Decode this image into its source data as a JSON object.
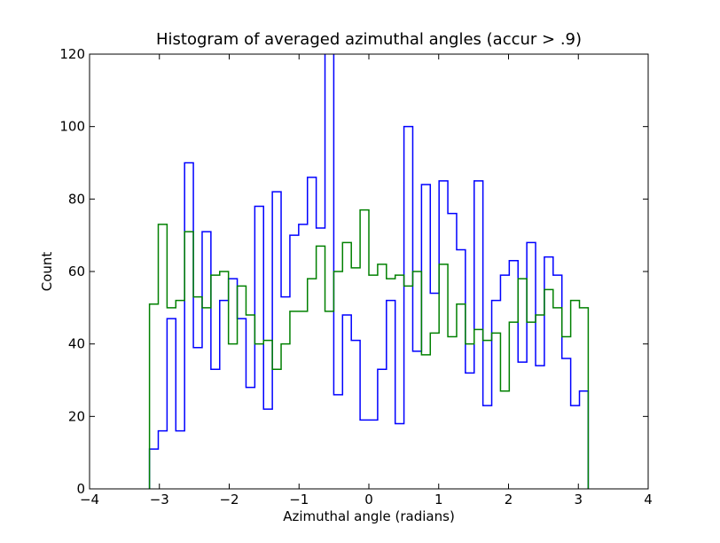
{
  "chart_data": {
    "type": "histogram-step",
    "title": "Histogram of averaged azimuthal angles (accur > .9)",
    "xlabel": "Azimuthal angle (radians)",
    "ylabel": "Count",
    "xlim": [
      -4,
      4
    ],
    "ylim": [
      0,
      120
    ],
    "x_ticks": [
      -4,
      -3,
      -2,
      -1,
      0,
      1,
      2,
      3,
      4
    ],
    "x_tick_labels": [
      "−4",
      "−3",
      "−2",
      "−1",
      "0",
      "1",
      "2",
      "3",
      "4"
    ],
    "y_ticks": [
      0,
      20,
      40,
      60,
      80,
      100,
      120
    ],
    "y_tick_labels": [
      "0",
      "20",
      "40",
      "60",
      "80",
      "100",
      "120"
    ],
    "grid": false,
    "bin_range": [
      -3.14159,
      3.14159
    ],
    "bin_count": 50,
    "series": [
      {
        "color": "#0000ff",
        "values": [
          11,
          16,
          47,
          16,
          90,
          39,
          71,
          33,
          52,
          58,
          47,
          28,
          78,
          22,
          82,
          53,
          70,
          73,
          86,
          72,
          125,
          26,
          48,
          41,
          19,
          19,
          33,
          52,
          18,
          100,
          38,
          84,
          54,
          85,
          76,
          66,
          32,
          85,
          23,
          52,
          59,
          63,
          35,
          68,
          34,
          64,
          59,
          36,
          23,
          27
        ]
      },
      {
        "color": "#008000",
        "values": [
          51,
          73,
          50,
          52,
          71,
          53,
          50,
          59,
          60,
          40,
          56,
          48,
          40,
          41,
          33,
          40,
          49,
          49,
          58,
          67,
          49,
          60,
          68,
          61,
          77,
          59,
          62,
          58,
          59,
          56,
          60,
          37,
          43,
          62,
          42,
          51,
          40,
          44,
          41,
          43,
          27,
          46,
          58,
          46,
          48,
          55,
          50,
          42,
          52,
          50
        ]
      }
    ]
  }
}
